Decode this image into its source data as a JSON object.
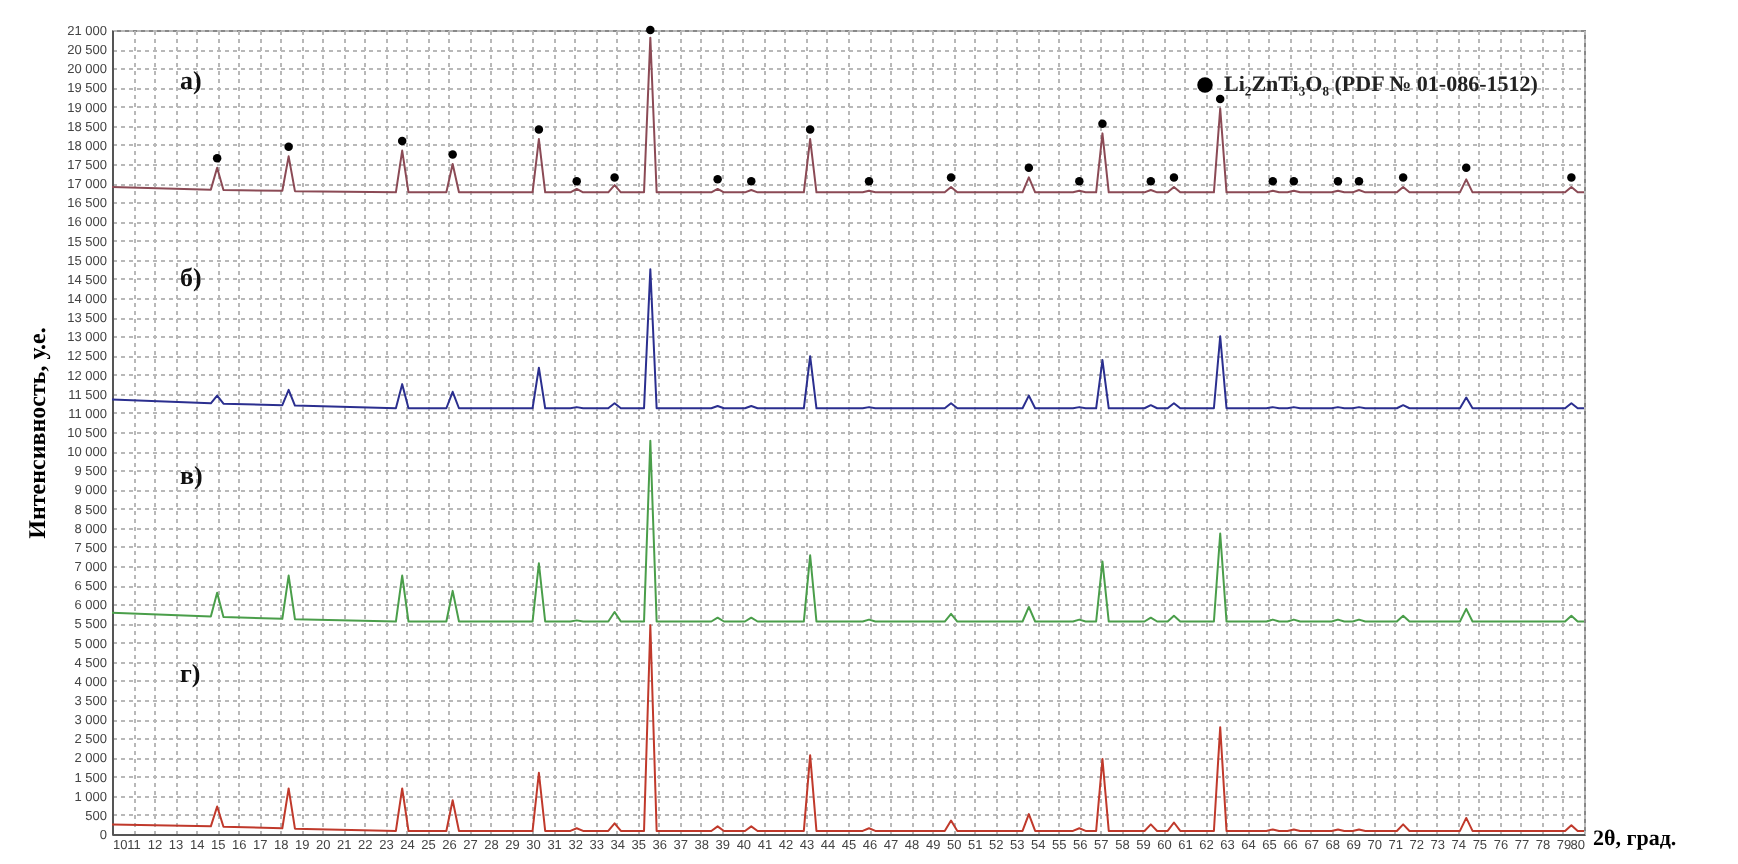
{
  "chart_data": {
    "type": "line",
    "xlabel": "2θ, град.",
    "ylabel": "Интенсивность, у.е.",
    "x": [
      10,
      14.7,
      15.0,
      15.3,
      18.1,
      18.4,
      18.7,
      23.5,
      23.8,
      24.1,
      25.9,
      26.2,
      26.5,
      30.0,
      30.3,
      30.6,
      31.8,
      32.1,
      32.4,
      33.6,
      33.9,
      34.2,
      35.3,
      35.6,
      35.9,
      38.5,
      38.8,
      39.1,
      40.1,
      40.4,
      40.7,
      42.9,
      43.2,
      43.5,
      45.7,
      46.0,
      46.3,
      49.6,
      49.9,
      50.2,
      53.3,
      53.6,
      53.9,
      55.7,
      56.0,
      56.3,
      56.8,
      57.1,
      57.4,
      59.1,
      59.4,
      59.7,
      60.2,
      60.5,
      60.8,
      62.4,
      62.7,
      63.0,
      64.9,
      65.2,
      65.5,
      65.9,
      66.2,
      66.5,
      68.0,
      68.3,
      68.6,
      69.0,
      69.3,
      69.6,
      71.1,
      71.4,
      71.7,
      74.1,
      74.4,
      74.7,
      79.1,
      79.4,
      79.7,
      80
    ],
    "series": [
      {
        "color": "#8b4a55",
        "values": [
          16900,
          16830,
          17400,
          16820,
          16800,
          17700,
          16790,
          16760,
          17850,
          16760,
          16760,
          17500,
          16760,
          16760,
          18150,
          16760,
          16760,
          16850,
          16760,
          16760,
          16950,
          16760,
          16760,
          20800,
          16760,
          16760,
          16850,
          16760,
          16760,
          16820,
          16760,
          16760,
          18150,
          16760,
          16760,
          16800,
          16760,
          16760,
          16900,
          16760,
          16760,
          17150,
          16760,
          16760,
          16800,
          16760,
          16760,
          18300,
          16760,
          16760,
          16820,
          16760,
          16760,
          16900,
          16760,
          16760,
          18950,
          16760,
          16760,
          16800,
          16760,
          16760,
          16800,
          16760,
          16760,
          16800,
          16760,
          16760,
          16820,
          16760,
          16760,
          16900,
          16760,
          16760,
          17100,
          16760,
          16760,
          16900,
          16760,
          16760
        ]
      },
      {
        "color": "#2b2f8f",
        "values": [
          11350,
          11250,
          11450,
          11240,
          11200,
          11600,
          11190,
          11120,
          11750,
          11120,
          11120,
          11550,
          11120,
          11120,
          12180,
          11120,
          11120,
          11150,
          11120,
          11120,
          11250,
          11120,
          11120,
          14750,
          11120,
          11120,
          11180,
          11120,
          11120,
          11180,
          11120,
          11120,
          12480,
          11120,
          11120,
          11150,
          11120,
          11120,
          11250,
          11120,
          11120,
          11450,
          11120,
          11120,
          11150,
          11120,
          11120,
          12380,
          11120,
          11120,
          11200,
          11120,
          11120,
          11250,
          11120,
          11120,
          13000,
          11120,
          11120,
          11150,
          11120,
          11120,
          11150,
          11120,
          11120,
          11150,
          11120,
          11120,
          11150,
          11120,
          11120,
          11200,
          11120,
          11120,
          11400,
          11120,
          11120,
          11250,
          11120,
          11120
        ]
      },
      {
        "color": "#4a9e4a",
        "values": [
          5780,
          5680,
          6300,
          5670,
          5620,
          6750,
          5610,
          5550,
          6750,
          5550,
          5550,
          6350,
          5550,
          5550,
          7070,
          5550,
          5550,
          5580,
          5550,
          5550,
          5800,
          5550,
          5550,
          10270,
          5550,
          5550,
          5650,
          5550,
          5550,
          5650,
          5550,
          5550,
          7280,
          5550,
          5550,
          5600,
          5550,
          5550,
          5750,
          5550,
          5550,
          5930,
          5550,
          5550,
          5600,
          5550,
          5550,
          7120,
          5550,
          5550,
          5650,
          5550,
          5550,
          5700,
          5550,
          5550,
          7850,
          5550,
          5550,
          5600,
          5550,
          5550,
          5600,
          5550,
          5550,
          5600,
          5550,
          5550,
          5600,
          5550,
          5550,
          5700,
          5550,
          5550,
          5880,
          5550,
          5550,
          5700,
          5550,
          5550
        ]
      },
      {
        "color": "#c0392b",
        "values": [
          250,
          200,
          720,
          190,
          150,
          1190,
          140,
          80,
          1190,
          80,
          80,
          880,
          80,
          80,
          1600,
          80,
          80,
          150,
          80,
          80,
          280,
          80,
          80,
          5450,
          80,
          80,
          200,
          80,
          80,
          200,
          80,
          80,
          2060,
          80,
          80,
          150,
          80,
          80,
          350,
          80,
          80,
          520,
          80,
          80,
          150,
          80,
          80,
          1960,
          80,
          80,
          250,
          80,
          80,
          300,
          80,
          80,
          2790,
          80,
          80,
          120,
          80,
          80,
          120,
          80,
          80,
          120,
          80,
          80,
          120,
          80,
          80,
          250,
          80,
          80,
          420,
          80,
          80,
          230,
          80,
          80
        ]
      },
      {
        "type": "scatter",
        "name": "Li₂ZnTi₃O₈ (PDF № 01-086-1512)",
        "color": "#000000",
        "x": [
          15.0,
          18.4,
          23.8,
          26.2,
          30.3,
          32.1,
          33.9,
          35.6,
          38.8,
          40.4,
          43.2,
          46.0,
          49.9,
          53.6,
          56.0,
          57.1,
          59.4,
          60.5,
          62.7,
          65.2,
          66.2,
          68.3,
          69.3,
          71.4,
          74.4,
          79.4
        ],
        "values": [
          17650,
          17950,
          18100,
          17750,
          18400,
          17050,
          17150,
          21000,
          17100,
          17050,
          18400,
          17050,
          17150,
          17400,
          17050,
          18550,
          17050,
          17150,
          19200,
          17050,
          17050,
          17050,
          17050,
          17150,
          17400,
          17150
        ]
      }
    ],
    "annotations": [
      "а)",
      "б)",
      "в)",
      "г)"
    ],
    "xlim": [
      10,
      80
    ],
    "ylim": [
      0,
      21000
    ],
    "xticks": [
      10,
      11,
      12,
      13,
      14,
      15,
      16,
      17,
      18,
      19,
      20,
      21,
      22,
      23,
      24,
      25,
      26,
      27,
      28,
      29,
      30,
      31,
      32,
      33,
      34,
      35,
      36,
      37,
      38,
      39,
      40,
      41,
      42,
      43,
      44,
      45,
      46,
      47,
      48,
      49,
      50,
      51,
      52,
      53,
      54,
      55,
      56,
      57,
      58,
      59,
      60,
      61,
      62,
      63,
      64,
      65,
      66,
      67,
      68,
      69,
      70,
      71,
      72,
      73,
      74,
      75,
      76,
      77,
      78,
      79,
      80
    ],
    "yticks": [
      0,
      500,
      {
        "value": 1000,
        "label": "1 000"
      },
      {
        "value": 1500,
        "label": "1 500"
      },
      {
        "value": 2000,
        "label": "2 000"
      },
      {
        "value": 2500,
        "label": "2 500"
      },
      {
        "value": 3000,
        "label": "3 000"
      },
      {
        "value": 3500,
        "label": "3 500"
      },
      {
        "value": 4000,
        "label": "4 000"
      },
      {
        "value": 4500,
        "label": "4 500"
      },
      {
        "value": 5000,
        "label": "5 000"
      },
      {
        "value": 5500,
        "label": "5 500"
      },
      {
        "value": 6000,
        "label": "6 000"
      },
      {
        "value": 6500,
        "label": "6 500"
      },
      {
        "value": 7000,
        "label": "7 000"
      },
      {
        "value": 7500,
        "label": "7 500"
      },
      {
        "value": 8000,
        "label": "8 000"
      },
      {
        "value": 8500,
        "label": "8 500"
      },
      {
        "value": 9000,
        "label": "9 000"
      },
      {
        "value": 9500,
        "label": "9 500"
      },
      {
        "value": 10000,
        "label": "10 000"
      },
      {
        "value": 10500,
        "label": "10 500"
      },
      {
        "value": 11000,
        "label": "11 000"
      },
      {
        "value": 11500,
        "label": "11 500"
      },
      {
        "value": 12000,
        "label": "12 000"
      },
      {
        "value": 12500,
        "label": "12 500"
      },
      {
        "value": 13000,
        "label": "13 000"
      },
      {
        "value": 13500,
        "label": "13 500"
      },
      {
        "value": 14000,
        "label": "14 000"
      },
      {
        "value": 14500,
        "label": "14 500"
      },
      {
        "value": 15000,
        "label": "15 000"
      },
      {
        "value": 15500,
        "label": "15 500"
      },
      {
        "value": 16000,
        "label": "16 000"
      },
      {
        "value": 16500,
        "label": "16 500"
      },
      {
        "value": 17000,
        "label": "17 000"
      },
      {
        "value": 17500,
        "label": "17 500"
      },
      {
        "value": 18000,
        "label": "18 000"
      },
      {
        "value": 18500,
        "label": "18 500"
      },
      {
        "value": 19000,
        "label": "19 000"
      },
      {
        "value": 19500,
        "label": "19 500"
      },
      {
        "value": 20000,
        "label": "20 000"
      },
      {
        "value": 20500,
        "label": "20 500"
      },
      {
        "value": 21000,
        "label": "21 000"
      }
    ],
    "grid": true,
    "legend": "top right"
  }
}
